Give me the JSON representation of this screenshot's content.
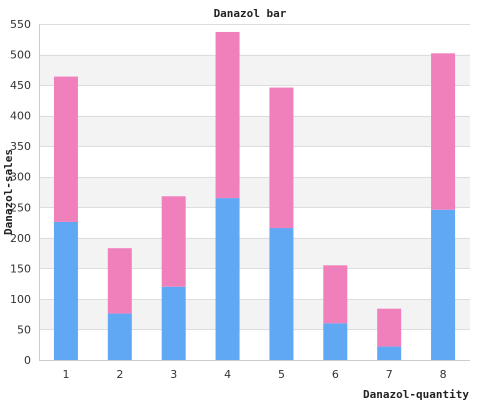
{
  "chart_data": {
    "type": "bar",
    "stacked": true,
    "title": "Danazol bar",
    "xlabel": "Danazol-quantity",
    "ylabel": "Danazol-sales",
    "categories": [
      "1",
      "2",
      "3",
      "4",
      "5",
      "6",
      "7",
      "8"
    ],
    "series": [
      {
        "color": "#60a8f4",
        "values": [
          226,
          76,
          120,
          265,
          216,
          60,
          22,
          246
        ]
      },
      {
        "color": "#f080bc",
        "values": [
          238,
          107,
          148,
          272,
          230,
          95,
          62,
          256
        ]
      }
    ],
    "ylim": [
      0,
      550
    ],
    "yticks": [
      0,
      50,
      100,
      150,
      200,
      250,
      300,
      350,
      400,
      450,
      500,
      550
    ],
    "grid": true,
    "band_colors": [
      "#ffffff",
      "#f3f3f3"
    ],
    "legend": "none"
  }
}
